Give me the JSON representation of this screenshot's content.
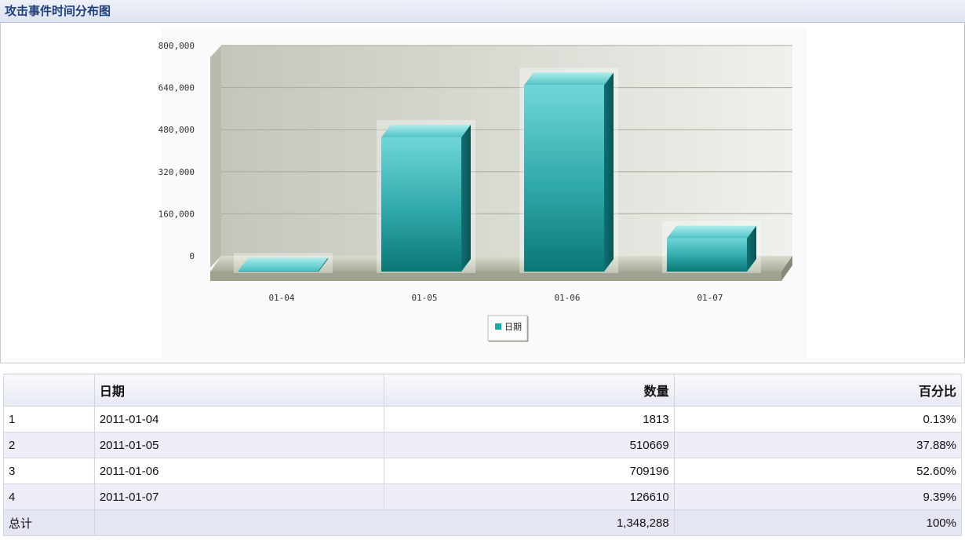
{
  "panel": {
    "title": "攻击事件时间分布图"
  },
  "chart_data": {
    "type": "bar",
    "categories": [
      "01-04",
      "01-05",
      "01-06",
      "01-07"
    ],
    "values": [
      1813,
      510669,
      709196,
      126610
    ],
    "ylim": [
      0,
      800000
    ],
    "yticks": [
      "800,000",
      "640,000",
      "480,000",
      "320,000",
      "160,000",
      "0"
    ],
    "yticks_values": [
      800000,
      640000,
      480000,
      320000,
      160000,
      0
    ],
    "legend": {
      "label": "日期",
      "position": "bottom"
    },
    "grid": true,
    "color": "#1fa8a8"
  },
  "table": {
    "headers": [
      "",
      "日期",
      "数量",
      "百分比"
    ],
    "rows": [
      [
        "1",
        "2011-01-04",
        "1813",
        "0.13%"
      ],
      [
        "2",
        "2011-01-05",
        "510669",
        "37.88%"
      ],
      [
        "3",
        "2011-01-06",
        "709196",
        "52.60%"
      ],
      [
        "4",
        "2011-01-07",
        "126610",
        "9.39%"
      ]
    ],
    "total": {
      "label": "总计",
      "value": "1,348,288",
      "percent": "100%"
    }
  }
}
